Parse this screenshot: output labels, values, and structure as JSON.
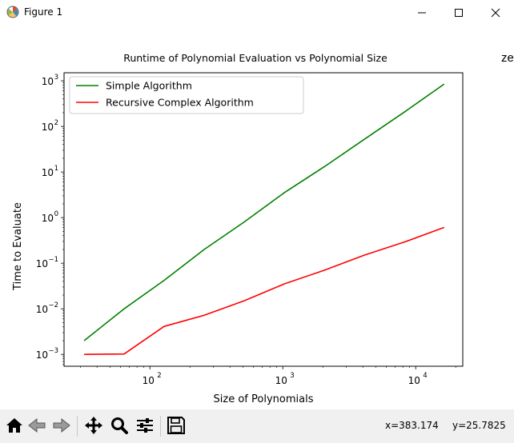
{
  "window": {
    "title": "Figure 1",
    "clipped_text": "ze"
  },
  "toolbar": {
    "buttons": [
      {
        "name": "home-button",
        "icon": "home-icon"
      },
      {
        "name": "back-button",
        "icon": "back-arrow-icon"
      },
      {
        "name": "forward-button",
        "icon": "forward-arrow-icon"
      },
      {
        "name": "pan-button",
        "icon": "move-icon"
      },
      {
        "name": "zoom-button",
        "icon": "magnifier-icon"
      },
      {
        "name": "configure-subplots-button",
        "icon": "sliders-icon"
      },
      {
        "name": "save-button",
        "icon": "floppy-disk-icon"
      }
    ],
    "x_readout": "x=383.174",
    "y_readout": "y=25.7825"
  },
  "chart_data": {
    "type": "line",
    "title": "Runtime of Polynomial Evaluation vs Polynomial Size",
    "xlabel": "Size of Polynomials",
    "ylabel": "Time to Evaluate",
    "x_scale": "log",
    "y_scale": "log",
    "xlim": [
      22.6,
      22600
    ],
    "ylim": [
      0.00055,
      1500
    ],
    "grid": false,
    "legend_position": "upper left",
    "x_ticks": [
      {
        "value": 100,
        "label": "10",
        "exp": "2"
      },
      {
        "value": 1000,
        "label": "10",
        "exp": "3"
      },
      {
        "value": 10000,
        "label": "10",
        "exp": "4"
      }
    ],
    "y_ticks": [
      {
        "value": 0.001,
        "label": "10",
        "exp": "−3"
      },
      {
        "value": 0.01,
        "label": "10",
        "exp": "−2"
      },
      {
        "value": 0.1,
        "label": "10",
        "exp": "−1"
      },
      {
        "value": 1,
        "label": "10",
        "exp": "0"
      },
      {
        "value": 10,
        "label": "10",
        "exp": "1"
      },
      {
        "value": 100,
        "label": "10",
        "exp": "2"
      },
      {
        "value": 1000,
        "label": "10",
        "exp": "3"
      }
    ],
    "x": [
      32,
      64,
      128,
      256,
      512,
      1024,
      2048,
      4096,
      8192,
      16384
    ],
    "series": [
      {
        "name": "Simple Algorithm",
        "color": "#008000",
        "values": [
          0.002,
          0.01,
          0.042,
          0.2,
          0.8,
          3.5,
          13,
          52,
          205,
          850
        ]
      },
      {
        "name": "Recursive Complex Algorithm",
        "color": "#ff0000",
        "values": [
          0.001,
          0.00102,
          0.0041,
          0.0072,
          0.015,
          0.035,
          0.07,
          0.15,
          0.29,
          0.61
        ]
      }
    ]
  }
}
